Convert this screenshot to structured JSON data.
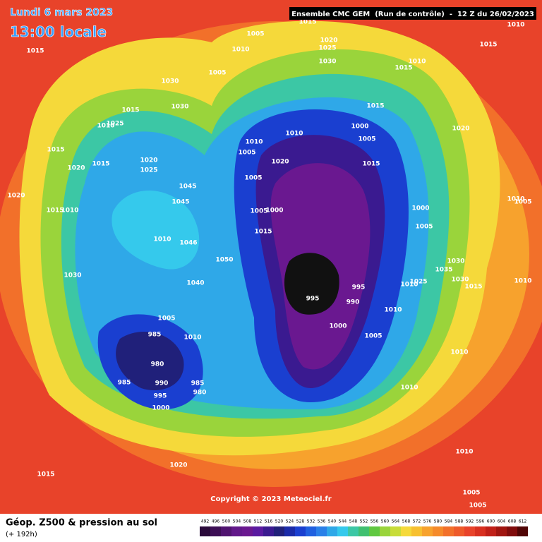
{
  "header": {
    "date": "Lundi 6 mars 2023",
    "local_time": "13:00 locale",
    "model": "Ensemble CMC GEM  (Run de contrôle)  -  12 Z du 26/02/2023"
  },
  "map": {
    "pressure_labels": [
      1015,
      1005,
      1010,
      1015,
      1020,
      1025,
      1030,
      1010,
      1015,
      1010,
      1015,
      1030,
      1030,
      1005,
      1015,
      1010,
      1025,
      1015,
      1020,
      1015,
      1020,
      1025,
      1045,
      1045,
      1020,
      1015,
      1010,
      1010,
      1010,
      1005,
      1020,
      1005,
      1005,
      1000,
      1015,
      1000,
      1005,
      1015,
      1015,
      1020,
      1010,
      1005,
      1000,
      1005,
      1030,
      1035,
      1030,
      1015,
      1010,
      1025,
      1010,
      995,
      990,
      995,
      1010,
      1000,
      1005,
      1010,
      1010,
      1050,
      1040,
      1046,
      1010,
      1030,
      1005,
      1010,
      985,
      980,
      985,
      990,
      995,
      1000,
      985,
      980,
      1015,
      1020,
      1010,
      1005,
      1005
    ]
  },
  "copyright": "Copyright © 2023 Meteociel.fr",
  "legend": {
    "title": "Géop. Z500 & pression au sol",
    "lead": "(+ 192h)",
    "scale": [
      492,
      496,
      500,
      504,
      508,
      512,
      516,
      520,
      524,
      528,
      532,
      536,
      540,
      544,
      548,
      552,
      556,
      560,
      564,
      568,
      572,
      576,
      580,
      584,
      588,
      592,
      596,
      600,
      604,
      608,
      612
    ]
  }
}
